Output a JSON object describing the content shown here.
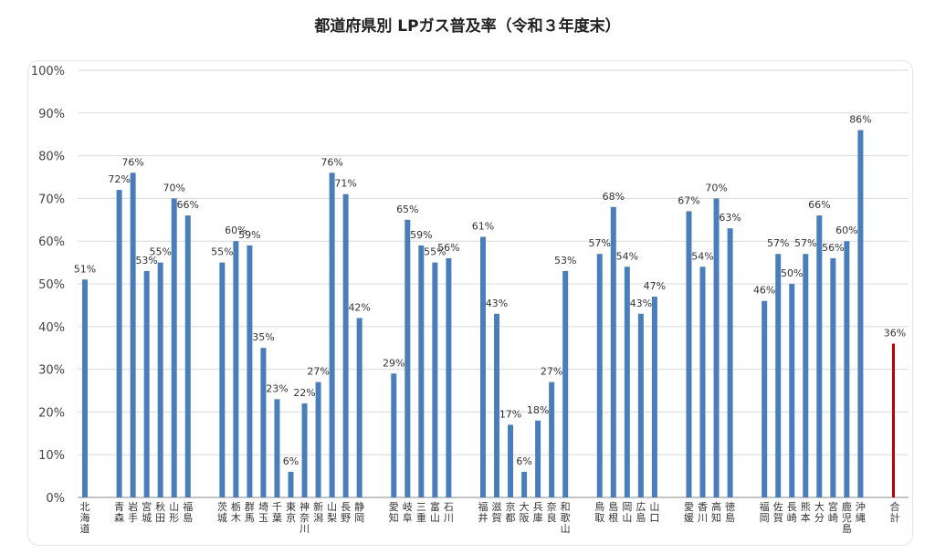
{
  "chart_data": {
    "type": "bar",
    "title": "都道府県別 LPガス普及率（令和３年度末）",
    "xlabel": "",
    "ylabel": "",
    "ylim": [
      0,
      100
    ],
    "yticks": [
      "0%",
      "10%",
      "20%",
      "30%",
      "40%",
      "50%",
      "60%",
      "70%",
      "80%",
      "90%",
      "100%"
    ],
    "grid": true,
    "value_suffix": "%",
    "colors": {
      "bar": "#4a7ebb",
      "total": "#c00000",
      "grid": "#d9d9d9",
      "axis": "#888888"
    },
    "categories": [
      "北海道",
      "青森",
      "岩手",
      "宮城",
      "秋田",
      "山形",
      "福島",
      "茨城",
      "栃木",
      "群馬",
      "埼玉",
      "千葉",
      "東京",
      "神奈川",
      "新潟",
      "山梨",
      "長野",
      "静岡",
      "愛知",
      "岐阜",
      "三重",
      "富山",
      "石川",
      "福井",
      "滋賀",
      "京都",
      "大阪",
      "兵庫",
      "奈良",
      "和歌山",
      "鳥取",
      "島根",
      "岡山",
      "広島",
      "山口",
      "愛媛",
      "香川",
      "高知",
      "徳島",
      "福岡",
      "佐賀",
      "長崎",
      "熊本",
      "大分",
      "宮崎",
      "鹿児島",
      "沖縄",
      "合計"
    ],
    "values": [
      51,
      72,
      76,
      53,
      55,
      70,
      66,
      55,
      60,
      59,
      35,
      23,
      6,
      22,
      27,
      76,
      71,
      42,
      29,
      65,
      59,
      55,
      56,
      61,
      43,
      17,
      6,
      18,
      27,
      53,
      57,
      68,
      54,
      43,
      47,
      67,
      54,
      70,
      63,
      46,
      57,
      50,
      57,
      66,
      56,
      60,
      86,
      36
    ],
    "groups": [
      1,
      6,
      11,
      5,
      7,
      5,
      4,
      8,
      1
    ]
  }
}
